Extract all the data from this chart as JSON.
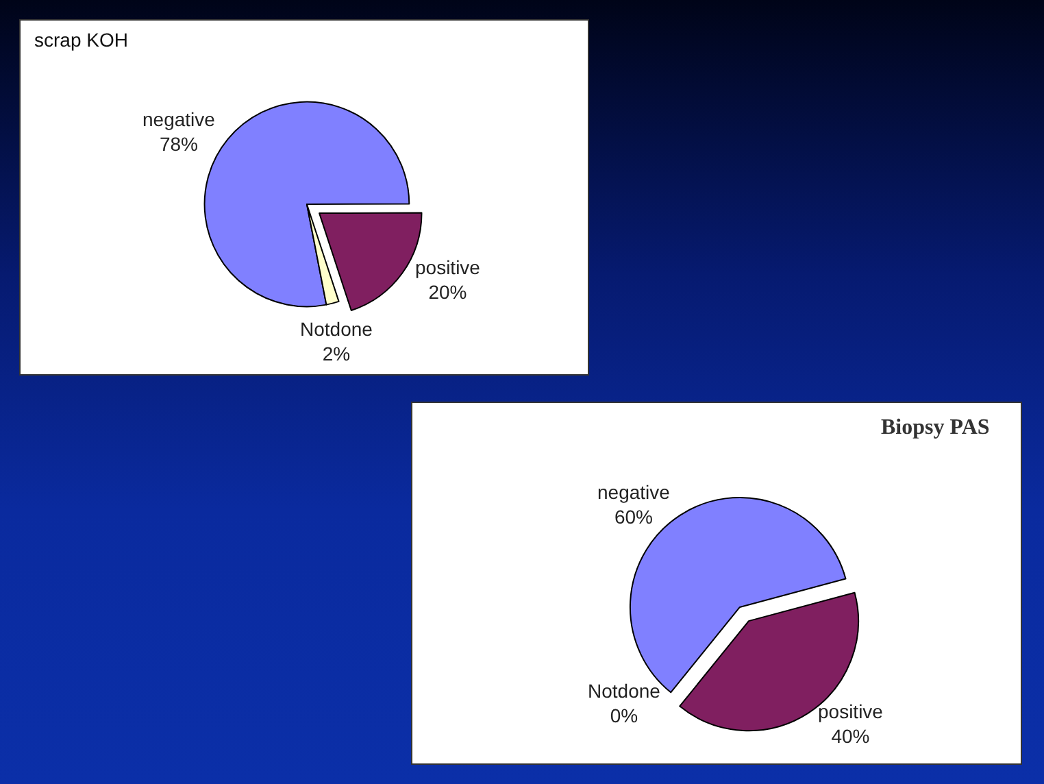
{
  "chart_data": [
    {
      "type": "pie",
      "title": "scrap KOH",
      "categories": [
        "negative",
        "positive",
        "Notdone"
      ],
      "values": [
        78,
        20,
        2
      ],
      "colors": [
        "#8080ff",
        "#801f60",
        "#ffffcc"
      ],
      "value_labels": [
        "78%",
        "20%",
        "2%"
      ]
    },
    {
      "type": "pie",
      "title": "Biopsy PAS",
      "categories": [
        "negative",
        "positive",
        "Notdone"
      ],
      "values": [
        60,
        40,
        0
      ],
      "colors": [
        "#8080ff",
        "#801f60",
        "#ffffcc"
      ],
      "value_labels": [
        "60%",
        "40%",
        "0%"
      ]
    }
  ]
}
